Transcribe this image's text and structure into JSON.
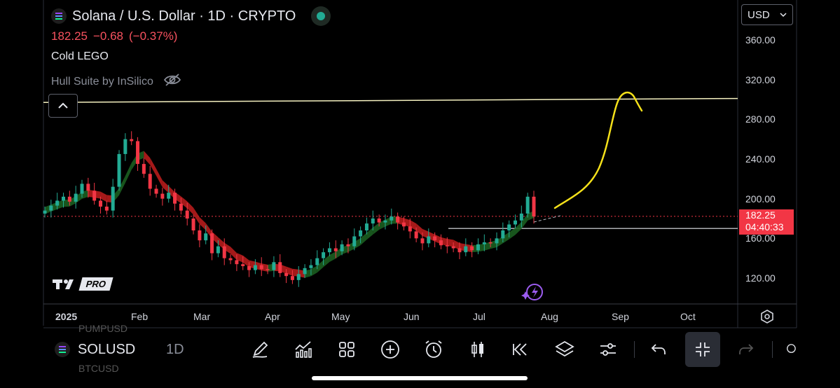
{
  "header": {
    "title": "Solana / U.S. Dollar · 1D · CRYPTO",
    "price": "182.25",
    "change": "−0.68",
    "change_pct": "(−0.37%)",
    "indicator1": "Cold LEGO",
    "indicator2": "Hull Suite by InSilico"
  },
  "currency": "USD",
  "y_axis": [
    "360.00",
    "320.00",
    "280.00",
    "240.00",
    "200.00",
    "160.00",
    "120.00"
  ],
  "x_axis": [
    "2025",
    "Feb",
    "Mar",
    "Apr",
    "May",
    "Jun",
    "Jul",
    "Aug",
    "Sep",
    "Oct"
  ],
  "price_label": {
    "price": "182.25",
    "countdown": "04:40:33"
  },
  "tv_badge": "PRO",
  "bottom": {
    "symbol": "SOLUSD",
    "interval": "1D",
    "ghost_top": "PUMPUSD",
    "ghost_bottom": "BTCUSD"
  },
  "colors": {
    "up": "#22ab94",
    "down": "#f23645",
    "hull_up": "#1b5e20",
    "hull_down": "#b71c1c",
    "drawing": "#f5e11a",
    "resistance": "#f5f1c0"
  },
  "icons": [
    "solana-logo-icon",
    "eye-off-icon",
    "chevron-up-icon",
    "chevron-down-icon",
    "gear-icon",
    "pen-icon",
    "indicators-icon",
    "grid-icon",
    "plus-circle-icon",
    "alarm-icon",
    "candles-icon",
    "replay-icon",
    "layers-icon",
    "settings-sliders-icon",
    "undo-icon",
    "collapse-icon",
    "redo-icon",
    "lightning-icon"
  ],
  "chart_data": {
    "type": "candlestick",
    "symbol": "SOLUSD",
    "interval": "1D",
    "y_range": [
      95,
      385
    ],
    "x_dates_ticks": [
      "2025",
      "Feb",
      "Mar",
      "Apr",
      "May",
      "Jun",
      "Jul",
      "Aug",
      "Sep",
      "Oct"
    ],
    "current_price": 182.25,
    "resistance_line": {
      "from": 297,
      "to": 301
    },
    "support_line": 170,
    "path_close": [
      188,
      193,
      198,
      202,
      197,
      205,
      215,
      208,
      198,
      192,
      188,
      212,
      245,
      260,
      258,
      235,
      225,
      210,
      205,
      200,
      206,
      195,
      188,
      180,
      168,
      158,
      165,
      145,
      152,
      140,
      138,
      134,
      132,
      128,
      133,
      129,
      128,
      136,
      125,
      122,
      118,
      124,
      130,
      133,
      140,
      146,
      150,
      147,
      154,
      152,
      162,
      168,
      175,
      180,
      176,
      178,
      182,
      176,
      172,
      167,
      160,
      155,
      162,
      158,
      153,
      152,
      150,
      146,
      152,
      148,
      154,
      156,
      155,
      160,
      168,
      174,
      178,
      185,
      202,
      182
    ]
  }
}
